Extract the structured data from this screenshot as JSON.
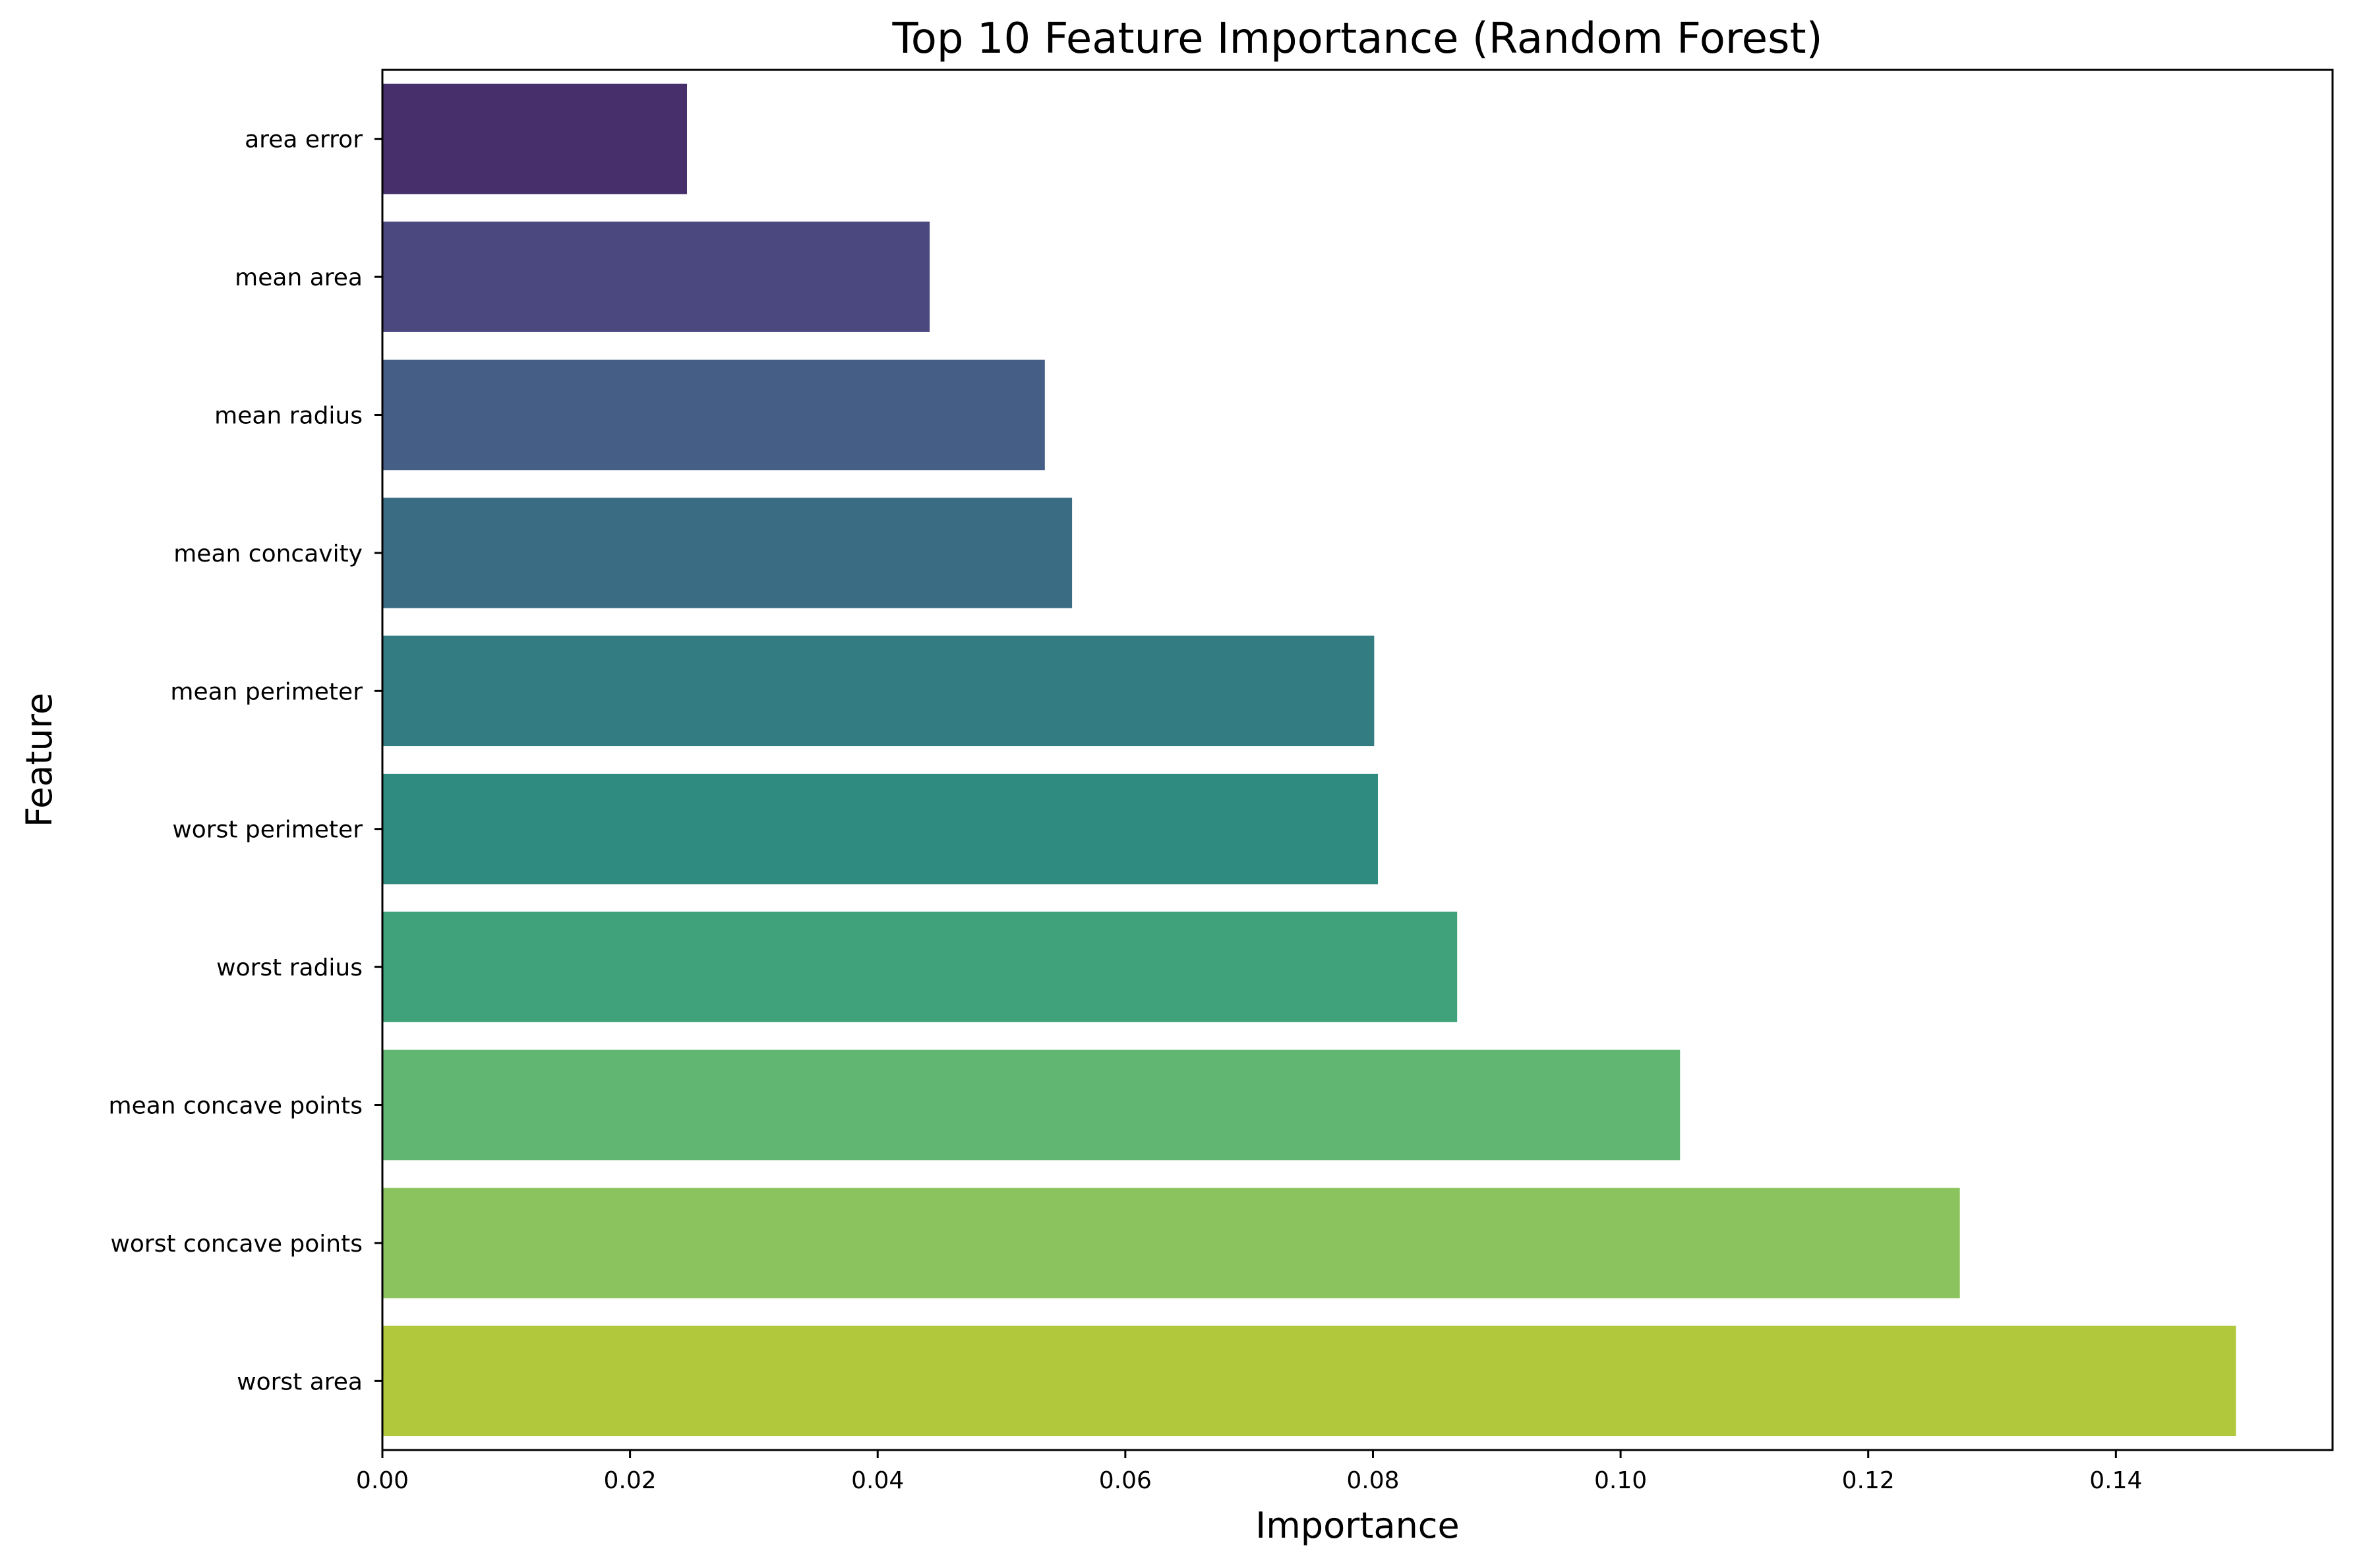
{
  "chart_data": {
    "type": "bar",
    "orientation": "horizontal",
    "title": "Top 10 Feature Importance (Random Forest)",
    "xlabel": "Importance",
    "ylabel": "Feature",
    "xlim": [
      0,
      0.1575
    ],
    "xticks": [
      0.0,
      0.02,
      0.04,
      0.06,
      0.08,
      0.1,
      0.12,
      0.14
    ],
    "xtick_labels": [
      "0.00",
      "0.02",
      "0.04",
      "0.06",
      "0.08",
      "0.10",
      "0.12",
      "0.14"
    ],
    "grid": false,
    "legend": "none",
    "categories": [
      "area error",
      "mean area",
      "mean radius",
      "mean concavity",
      "mean perimeter",
      "worst perimeter",
      "worst radius",
      "mean concave points",
      "worst concave points",
      "worst area"
    ],
    "values": [
      0.0246,
      0.0442,
      0.0535,
      0.0557,
      0.0801,
      0.0804,
      0.0868,
      0.1048,
      0.1274,
      0.1497
    ],
    "colors": [
      "#472f6b",
      "#4b4880",
      "#445e86",
      "#3a6c84",
      "#327c82",
      "#2f8b7f",
      "#3fa27b",
      "#61b672",
      "#8bc45f",
      "#b1c83c"
    ]
  }
}
